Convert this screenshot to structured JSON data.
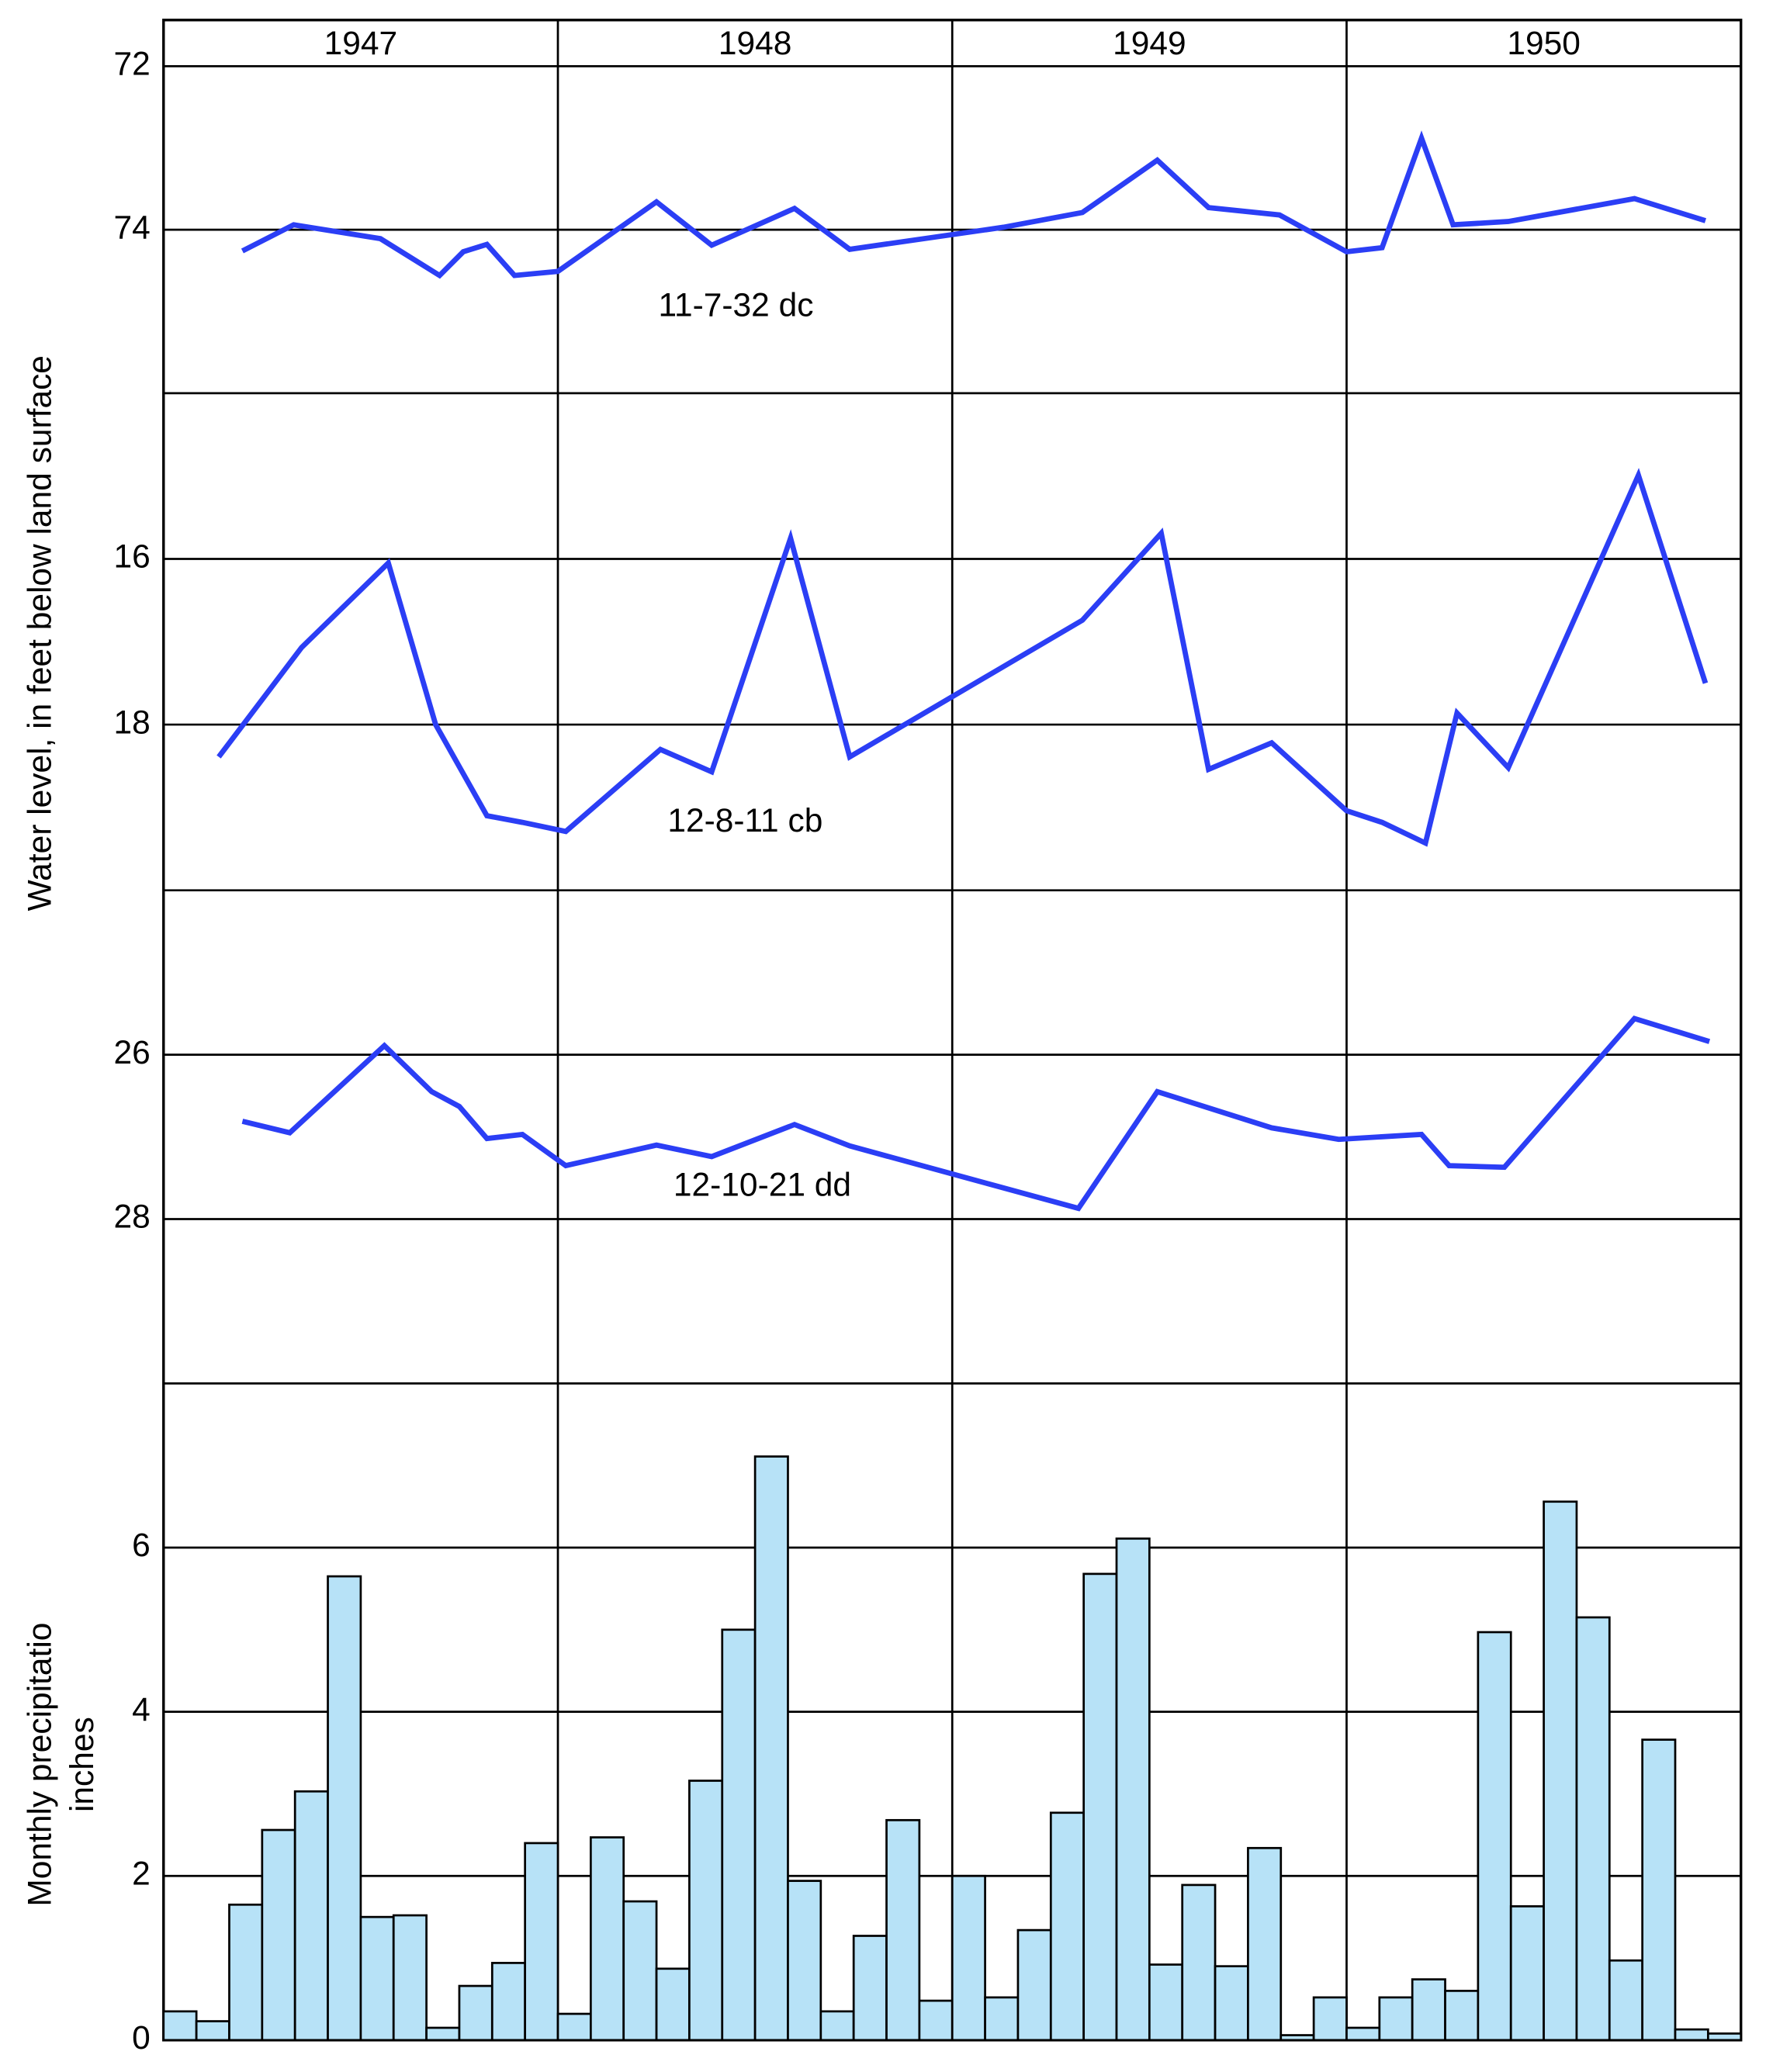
{
  "x_axis": {
    "labels": [
      "1947",
      "1948",
      "1949",
      "1950"
    ],
    "xlim": [
      1947,
      1951
    ]
  },
  "water_level_label": "Water level, in feet below land surface",
  "chart_data": [
    {
      "type": "line",
      "ylim": [
        76,
        72
      ],
      "yticks": [
        72,
        74
      ],
      "series": [
        {
          "name": "11-7-32 dc",
          "color": "#2b3ef5",
          "x": [
            1947.2,
            1947.33,
            1947.55,
            1947.7,
            1947.76,
            1947.82,
            1947.89,
            1948.0,
            1948.25,
            1948.39,
            1948.6,
            1948.74,
            1949.13,
            1949.33,
            1949.52,
            1949.65,
            1949.83,
            1950.0,
            1950.09,
            1950.19,
            1950.27,
            1950.41,
            1950.73,
            1950.91
          ],
          "values": [
            74.26,
            73.94,
            74.11,
            74.56,
            74.27,
            74.18,
            74.56,
            74.51,
            73.66,
            74.19,
            73.74,
            74.24,
            73.97,
            73.79,
            73.15,
            73.73,
            73.82,
            74.27,
            74.22,
            72.88,
            73.94,
            73.9,
            73.62,
            73.89
          ]
        }
      ]
    },
    {
      "type": "line",
      "ylim": [
        20,
        14
      ],
      "yticks": [
        16,
        18
      ],
      "series": [
        {
          "name": "12-8-11 cb",
          "color": "#2b3ef5",
          "x": [
            1947.14,
            1947.35,
            1947.57,
            1947.69,
            1947.82,
            1947.91,
            1948.02,
            1948.26,
            1948.39,
            1948.59,
            1948.74,
            1949.33,
            1949.53,
            1949.65,
            1949.81,
            1950.0,
            1950.09,
            1950.2,
            1950.28,
            1950.41,
            1950.74,
            1950.91
          ],
          "values": [
            18.39,
            17.07,
            16.05,
            18.0,
            19.1,
            19.18,
            19.29,
            18.3,
            18.57,
            15.75,
            18.39,
            16.74,
            15.69,
            18.54,
            18.22,
            19.04,
            19.18,
            19.43,
            17.86,
            18.52,
            14.99,
            17.5
          ]
        }
      ]
    },
    {
      "type": "line",
      "ylim": [
        30,
        24
      ],
      "yticks": [
        26,
        28
      ],
      "series": [
        {
          "name": "12-10-21 dd",
          "color": "#2b3ef5",
          "x": [
            1947.2,
            1947.32,
            1947.56,
            1947.68,
            1947.75,
            1947.82,
            1947.91,
            1948.02,
            1948.25,
            1948.39,
            1948.6,
            1948.74,
            1949.32,
            1949.52,
            1949.81,
            1949.98,
            1950.19,
            1950.26,
            1950.4,
            1950.73,
            1950.92
          ],
          "values": [
            26.81,
            26.95,
            25.89,
            26.45,
            26.63,
            27.02,
            26.97,
            27.35,
            27.1,
            27.24,
            26.85,
            27.11,
            27.87,
            26.45,
            26.89,
            27.03,
            26.97,
            27.35,
            27.37,
            25.56,
            25.84
          ]
        }
      ]
    },
    {
      "type": "bar",
      "ylabel": [
        "Monthly precipitatio",
        "inches"
      ],
      "color": "#b7e2f7",
      "ylim": [
        0,
        8
      ],
      "yticks": [
        0,
        2,
        4,
        6
      ],
      "values": [
        0.35,
        0.23,
        1.65,
        2.56,
        3.03,
        5.65,
        1.5,
        1.52,
        0.15,
        0.66,
        0.94,
        2.4,
        0.32,
        2.47,
        1.69,
        0.87,
        3.16,
        5.0,
        7.11,
        1.94,
        0.35,
        1.27,
        2.68,
        0.48,
        2.0,
        0.52,
        1.34,
        2.77,
        5.68,
        6.11,
        0.92,
        1.89,
        0.9,
        2.34,
        0.06,
        0.52,
        0.15,
        0.52,
        0.74,
        0.6,
        4.97,
        1.63,
        6.56,
        5.15,
        0.97,
        3.66,
        0.13,
        0.08
      ]
    }
  ]
}
